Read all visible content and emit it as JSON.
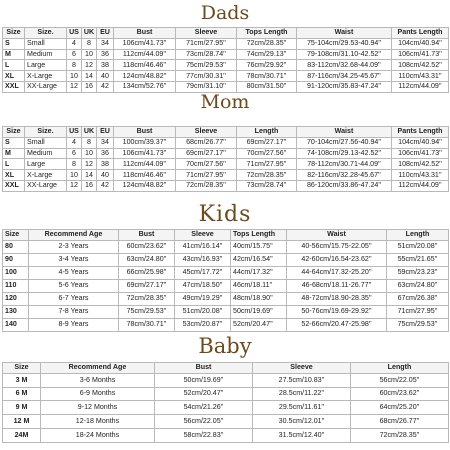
{
  "dads": {
    "title": "Dads",
    "headers": [
      "Size",
      "Size.",
      "US",
      "UK",
      "EU",
      "Bust",
      "Sleeve",
      "Tops Length",
      "Waist",
      "Pants Length"
    ],
    "rows": [
      [
        "S",
        "Small",
        "4",
        "8",
        "34",
        "106cm/41.73''",
        "71cm/27.95''",
        "72cm/28.35''",
        "75-104cm/29.53-40.94''",
        "104cm/40.94''"
      ],
      [
        "M",
        "Medium",
        "6",
        "10",
        "36",
        "112cm/44.09''",
        "73cm/28.74''",
        "74cm/29.13''",
        "79-108cm/31.10-42.52''",
        "106cm/41.73''"
      ],
      [
        "L",
        "Large",
        "8",
        "12",
        "38",
        "118cm/46.46''",
        "75cm/29.53''",
        "76cm/29.92''",
        "83-112cm/32.68-44.09''",
        "108cm/42.52''"
      ],
      [
        "XL",
        "X-Large",
        "10",
        "14",
        "40",
        "124cm/48.82''",
        "77cm/30.31''",
        "78cm/30.71''",
        "87-116cm/34.25-45.67''",
        "110cm/43.31''"
      ],
      [
        "XXL",
        "XX-Large",
        "12",
        "16",
        "42",
        "134cm/52.76''",
        "79cm/31.10''",
        "80cm/31.50''",
        "91-120cm/35.83-47.24''",
        "112cm/44.09''"
      ]
    ]
  },
  "mom": {
    "title": "Mom",
    "headers": [
      "Size",
      "Size.",
      "US",
      "UK",
      "EU",
      "Bust",
      "Sleeve",
      "Length",
      "Waist",
      "Pants Length"
    ],
    "rows": [
      [
        "S",
        "Small",
        "4",
        "8",
        "34",
        "100cm/39.37''",
        "68cm/26.77''",
        "69cm/27.17''",
        "70-104cm/27.56-40.94''",
        "104cm/40.94''"
      ],
      [
        "M",
        "Medium",
        "6",
        "10",
        "36",
        "106cm/41.73''",
        "69cm/27.17''",
        "70cm/27.56''",
        "74-108cm/29.13-42.52''",
        "106cm/41.73''"
      ],
      [
        "L",
        "Large",
        "8",
        "12",
        "38",
        "112cm/44.09''",
        "70cm/27.56''",
        "71cm/27.95''",
        "78-112cm/30.71-44.09''",
        "108cm/42.52''"
      ],
      [
        "XL",
        "X-Large",
        "10",
        "14",
        "40",
        "118cm/46.46''",
        "71cm/27.95''",
        "72cm/28.35''",
        "82-116cm/32.28-45.67''",
        "110cm/43.31''"
      ],
      [
        "XXL",
        "XX-Large",
        "12",
        "16",
        "42",
        "124cm/48.82''",
        "72cm/28.35''",
        "73cm/28.74''",
        "86-120cm/33.86-47.24''",
        "112cm/44.09''"
      ]
    ]
  },
  "kids": {
    "title": "Kids",
    "headers": [
      "Size",
      "Recommend Age",
      "Bust",
      "Sleeve",
      "Tops Length",
      "Waist",
      "Length"
    ],
    "rows": [
      [
        "80",
        "2-3 Years",
        "60cm/23.62''",
        "41cm/16.14''",
        "40cm/15.75''",
        "40-56cm/15.75-22.05''",
        "51cm/20.08''"
      ],
      [
        "90",
        "3-4 Years",
        "63cm/24.80''",
        "43cm/16.93''",
        "42cm/16.54''",
        "42-60cm/16.54-23.62''",
        "55cm/21.65''"
      ],
      [
        "100",
        "4-5 Years",
        "66cm/25.98''",
        "45cm/17.72''",
        "44cm/17.32''",
        "44-64cm/17.32-25.20''",
        "59cm/23.23''"
      ],
      [
        "110",
        "5-6 Years",
        "69cm/27.17''",
        "47cm/18.50''",
        "46cm/18.11''",
        "46-68cm/18.11-26.77''",
        "63cm/24.80''"
      ],
      [
        "120",
        "6-7 Years",
        "72cm/28.35''",
        "49cm/19.29''",
        "48cm/18.90''",
        "48-72cm/18.90-28.35''",
        "67cm/26.38''"
      ],
      [
        "130",
        "7-8 Years",
        "75cm/29.53''",
        "51cm/20.08''",
        "50cm/19.69''",
        "50-76cm/19.69-29.92''",
        "71cm/27.95''"
      ],
      [
        "140",
        "8-9 Years",
        "78cm/30.71''",
        "53cm/20.87''",
        "52cm/20.47''",
        "52-66cm/20.47-25.98''",
        "75cm/29.53''"
      ]
    ]
  },
  "baby": {
    "title": "Baby",
    "headers": [
      "Size",
      "Recommend Age",
      "Bust",
      "Sleeve",
      "Length"
    ],
    "rows": [
      [
        "3 M",
        "3-6 Months",
        "50cm/19.69''",
        "27.5cm/10.83''",
        "56cm/22.05''"
      ],
      [
        "6 M",
        "6-9 Months",
        "52cm/20.47''",
        "28.5cm/11.22''",
        "60cm/23.62''"
      ],
      [
        "9 M",
        "9-12 Months",
        "54cm/21.26''",
        "29.5cm/11.61''",
        "64cm/25.20''"
      ],
      [
        "12 M",
        "12-18 Months",
        "56cm/22.05''",
        "30.5cm/12.01''",
        "68cm/26.77''"
      ],
      [
        "24M",
        "18-24 Months",
        "58cm/22.83''",
        "31.5cm/12.40''",
        "72cm/28.35''"
      ]
    ]
  }
}
